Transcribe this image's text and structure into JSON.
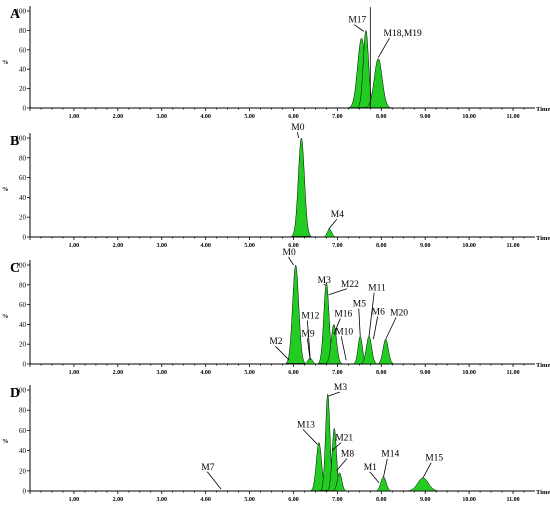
{
  "chart_data": [
    {
      "type": "area",
      "panel": "A",
      "xlabel": "Time",
      "ylabel": "%",
      "xlim": [
        0,
        11.5
      ],
      "ylim": [
        0,
        100
      ],
      "xticks": [
        "1.00",
        "2.00",
        "3.00",
        "4.00",
        "5.00",
        "6.00",
        "7.00",
        "8.00",
        "9.00",
        "10.00",
        "11.00"
      ],
      "yticks": [
        "0",
        "20",
        "40",
        "60",
        "80",
        "100"
      ],
      "peaks": [
        {
          "rt": 7.55,
          "height": 72,
          "width": 0.09
        },
        {
          "rt": 7.65,
          "height": 80,
          "width": 0.06
        },
        {
          "rt": 7.93,
          "height": 51,
          "width": 0.09
        }
      ],
      "labels": [
        {
          "text": "M17",
          "x": 7.25,
          "y": 88,
          "tx": 7.6,
          "ty": 79
        },
        {
          "text": "M18,M19",
          "x": 8.05,
          "y": 74,
          "tx": 7.93,
          "ty": 52
        }
      ],
      "markers": [
        {
          "x": 7.75,
          "y0": 0,
          "y1": 104
        }
      ]
    },
    {
      "type": "area",
      "panel": "B",
      "xlabel": "Time",
      "ylabel": "%",
      "xlim": [
        0,
        11.5
      ],
      "ylim": [
        0,
        100
      ],
      "xticks": [
        "1.00",
        "2.00",
        "3.00",
        "4.00",
        "5.00",
        "6.00",
        "7.00",
        "8.00",
        "9.00",
        "10.00",
        "11.00"
      ],
      "yticks": [
        "0",
        "20",
        "40",
        "60",
        "80",
        "100"
      ],
      "peaks": [
        {
          "rt": 6.18,
          "height": 100,
          "width": 0.07
        },
        {
          "rt": 6.82,
          "height": 8,
          "width": 0.05
        }
      ],
      "labels": [
        {
          "text": "M0",
          "x": 5.95,
          "y": 108,
          "tx": 6.12,
          "ty": 100
        },
        {
          "text": "M4",
          "x": 6.85,
          "y": 20,
          "tx": 6.8,
          "ty": 8
        }
      ],
      "markers": []
    },
    {
      "type": "area",
      "panel": "C",
      "xlabel": "Time",
      "ylabel": "%",
      "xlim": [
        0,
        11.5
      ],
      "ylim": [
        0,
        100
      ],
      "xticks": [
        "1.00",
        "2.00",
        "3.00",
        "4.00",
        "5.00",
        "6.00",
        "7.00",
        "8.00",
        "9.00",
        "10.00",
        "11.00"
      ],
      "yticks": [
        "0",
        "20",
        "40",
        "60",
        "80",
        "100"
      ],
      "peaks": [
        {
          "rt": 6.05,
          "height": 100,
          "width": 0.07
        },
        {
          "rt": 6.38,
          "height": 6,
          "width": 0.05
        },
        {
          "rt": 6.75,
          "height": 82,
          "width": 0.06
        },
        {
          "rt": 6.92,
          "height": 40,
          "width": 0.06
        },
        {
          "rt": 7.52,
          "height": 28,
          "width": 0.05
        },
        {
          "rt": 7.72,
          "height": 28,
          "width": 0.06
        },
        {
          "rt": 8.1,
          "height": 25,
          "width": 0.06
        }
      ],
      "labels": [
        {
          "text": "M0",
          "x": 5.75,
          "y": 110,
          "tx": 6.0,
          "ty": 100
        },
        {
          "text": "M3",
          "x": 6.55,
          "y": 82,
          "tx": 6.72,
          "ty": 80
        },
        {
          "text": "M22",
          "x": 7.08,
          "y": 78,
          "tx": 6.8,
          "ty": 70
        },
        {
          "text": "M12",
          "x": 6.18,
          "y": 46,
          "tx": 6.38,
          "ty": 6
        },
        {
          "text": "M16",
          "x": 6.93,
          "y": 48,
          "tx": 6.92,
          "ty": 30
        },
        {
          "text": "M5",
          "x": 7.35,
          "y": 58,
          "tx": 7.52,
          "ty": 28
        },
        {
          "text": "M11",
          "x": 7.7,
          "y": 74,
          "tx": 7.72,
          "ty": 28
        },
        {
          "text": "M6",
          "x": 7.78,
          "y": 50,
          "tx": 7.82,
          "ty": 25
        },
        {
          "text": "M20",
          "x": 8.2,
          "y": 49,
          "tx": 8.1,
          "ty": 25
        },
        {
          "text": "M9",
          "x": 6.18,
          "y": 28,
          "tx": 6.38,
          "ty": 4
        },
        {
          "text": "M10",
          "x": 6.95,
          "y": 30,
          "tx": 7.2,
          "ty": 4
        },
        {
          "text": "M2",
          "x": 5.45,
          "y": 20,
          "tx": 5.9,
          "ty": 4
        }
      ],
      "markers": []
    },
    {
      "type": "area",
      "panel": "D",
      "xlabel": "Time",
      "ylabel": "%",
      "xlim": [
        0,
        11.5
      ],
      "ylim": [
        0,
        100
      ],
      "xticks": [
        "1.00",
        "2.00",
        "3.00",
        "4.00",
        "5.00",
        "6.00",
        "7.00",
        "8.00",
        "9.00",
        "10.00",
        "11.00"
      ],
      "yticks": [
        "0",
        "20",
        "40",
        "60",
        "80",
        "100"
      ],
      "peaks": [
        {
          "rt": 6.58,
          "height": 48,
          "width": 0.06
        },
        {
          "rt": 6.78,
          "height": 96,
          "width": 0.05
        },
        {
          "rt": 6.93,
          "height": 62,
          "width": 0.05
        },
        {
          "rt": 7.05,
          "height": 18,
          "width": 0.05
        },
        {
          "rt": 8.05,
          "height": 14,
          "width": 0.06
        },
        {
          "rt": 8.95,
          "height": 13,
          "width": 0.12
        }
      ],
      "labels": [
        {
          "text": "M3",
          "x": 6.92,
          "y": 100,
          "tx": 6.8,
          "ty": 94
        },
        {
          "text": "M13",
          "x": 6.08,
          "y": 63,
          "tx": 6.55,
          "ty": 46
        },
        {
          "text": "M21",
          "x": 6.95,
          "y": 50,
          "tx": 6.88,
          "ty": 40
        },
        {
          "text": "M8",
          "x": 7.08,
          "y": 34,
          "tx": 6.98,
          "ty": 20
        },
        {
          "text": "M1",
          "x": 7.6,
          "y": 21,
          "tx": 7.95,
          "ty": 8
        },
        {
          "text": "M14",
          "x": 8.0,
          "y": 34,
          "tx": 8.05,
          "ty": 14
        },
        {
          "text": "M15",
          "x": 9.0,
          "y": 30,
          "tx": 8.95,
          "ty": 13
        },
        {
          "text": "M7",
          "x": 3.9,
          "y": 21,
          "tx": 4.35,
          "ty": 2
        }
      ],
      "markers": []
    }
  ]
}
